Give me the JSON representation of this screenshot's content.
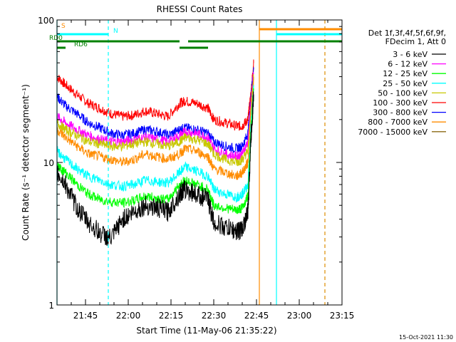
{
  "chart_data": {
    "type": "line",
    "title": "RHESSI Count Rates",
    "xlabel": "Start Time (11-May-06 21:35:22)",
    "ylabel": "Count Rate (s⁻¹ detector segment⁻¹)",
    "yscale": "log",
    "ylim": [
      1,
      100
    ],
    "yticks": [
      "1",
      "10",
      "100"
    ],
    "xlim": [
      "21:35",
      "23:15"
    ],
    "xticks": [
      "21:45",
      "22:00",
      "22:15",
      "22:30",
      "22:45",
      "23:00",
      "23:15"
    ],
    "timestamp": "15-Oct-2021 11:30",
    "legend": {
      "placement": "right",
      "header": [
        "Det 1f,3f,4f,5f,6f,9f,",
        "FDecim 1, Att 0"
      ],
      "entries": [
        {
          "label": "3 - 6 keV",
          "color": "#000000"
        },
        {
          "label": "6 - 12 keV",
          "color": "#ff00ff"
        },
        {
          "label": "12 - 25 keV",
          "color": "#00ff00"
        },
        {
          "label": "25 - 50 keV",
          "color": "#00ffff"
        },
        {
          "label": "50 - 100 keV",
          "color": "#c8c800"
        },
        {
          "label": "100 - 300 keV",
          "color": "#ff0000"
        },
        {
          "label": "300 - 800 keV",
          "color": "#0000ff"
        },
        {
          "label": "800 - 7000 keV",
          "color": "#ff8c00"
        },
        {
          "label": "7000 - 15000 keV",
          "color": "#8b6914"
        }
      ]
    },
    "time_x": [
      "21:35",
      "21:38",
      "21:42",
      "21:46",
      "21:50",
      "21:54",
      "21:58",
      "22:02",
      "22:06",
      "22:10",
      "22:14",
      "22:18",
      "22:20",
      "22:24",
      "22:28",
      "22:30",
      "22:34",
      "22:38",
      "22:40",
      "22:42",
      "22:43",
      "22:44"
    ],
    "series": [
      {
        "color": "#ff0000",
        "values": [
          40,
          35,
          30,
          26,
          24,
          22,
          21,
          21.5,
          23,
          22,
          21,
          26,
          27,
          26,
          24,
          20,
          19,
          18,
          18,
          20,
          30,
          50
        ]
      },
      {
        "color": "#0000ff",
        "values": [
          29,
          25,
          22,
          19,
          17.5,
          16,
          15.5,
          16,
          17,
          16.5,
          15.5,
          17,
          17.5,
          17,
          16,
          14,
          13,
          12.5,
          13,
          16,
          28,
          45
        ]
      },
      {
        "color": "#ff00ff",
        "values": [
          21,
          19,
          17,
          15.5,
          14.5,
          14,
          14,
          14.5,
          15,
          14.5,
          14,
          15.5,
          16.5,
          16,
          15,
          12.5,
          11.5,
          11,
          11.5,
          14,
          26,
          42
        ]
      },
      {
        "color": "#c8c800",
        "values": [
          19,
          17,
          15.5,
          14,
          13.5,
          13,
          13,
          13.5,
          14,
          13.5,
          13,
          14,
          15,
          14.5,
          13.5,
          11.5,
          10.5,
          10,
          10.5,
          12,
          24,
          40
        ]
      },
      {
        "color": "#ff8c00",
        "values": [
          17,
          15,
          13,
          11.5,
          11,
          10.5,
          10,
          10.5,
          11.5,
          11,
          10.5,
          11.5,
          12.5,
          12,
          11,
          9,
          8.5,
          8,
          8.5,
          10,
          22,
          38
        ]
      },
      {
        "color": "#00ffff",
        "values": [
          12,
          10.5,
          9,
          8,
          7.5,
          7,
          6.8,
          7,
          7.5,
          7.3,
          7.2,
          8.5,
          9.3,
          8.7,
          8,
          6.5,
          6,
          5.7,
          6,
          7,
          18,
          35
        ]
      },
      {
        "color": "#00ff00",
        "values": [
          9.5,
          8.5,
          7,
          6,
          5.5,
          5.3,
          5.2,
          5.4,
          5.8,
          5.6,
          5.5,
          7,
          7.5,
          7,
          6.5,
          5,
          4.8,
          4.6,
          4.8,
          5.8,
          16,
          32
        ]
      },
      {
        "color": "#000000",
        "values": [
          8.5,
          7,
          4.8,
          3.8,
          3.2,
          2.9,
          4,
          4.5,
          5,
          4.8,
          4.5,
          6,
          6.5,
          6,
          5.5,
          3.8,
          3.5,
          3.3,
          3.4,
          4.5,
          14,
          30
        ]
      }
    ],
    "vertical_lines": [
      {
        "time": "21:35",
        "color": "#00ffff",
        "style": "solid"
      },
      {
        "time": "21:53",
        "color": "#00ffff",
        "style": "dashed"
      },
      {
        "time": "22:46",
        "color": "#ff8c00",
        "style": "solid"
      },
      {
        "time": "22:52",
        "color": "#00ffff",
        "style": "solid"
      },
      {
        "time": "23:09",
        "color": "#00ffff",
        "style": "dashed"
      },
      {
        "time": "23:09",
        "color": "#ff8c00",
        "style": "dashed"
      }
    ],
    "flag_bars": [
      {
        "label": "S",
        "color": "#ff8c00",
        "segments": [
          [
            "22:46",
            "23:15"
          ]
        ]
      },
      {
        "label": "N",
        "color": "#00ffff",
        "segments": [
          [
            "21:35",
            "21:53"
          ],
          [
            "22:52",
            "23:15"
          ]
        ]
      },
      {
        "label": "RD0",
        "color": "#008000",
        "segments": [
          [
            "21:35",
            "22:18"
          ],
          [
            "22:21",
            "23:15"
          ]
        ]
      },
      {
        "label": "RD6",
        "color": "#008000",
        "segments": [
          [
            "21:35",
            "21:38"
          ],
          [
            "22:18",
            "22:28"
          ]
        ]
      }
    ]
  }
}
